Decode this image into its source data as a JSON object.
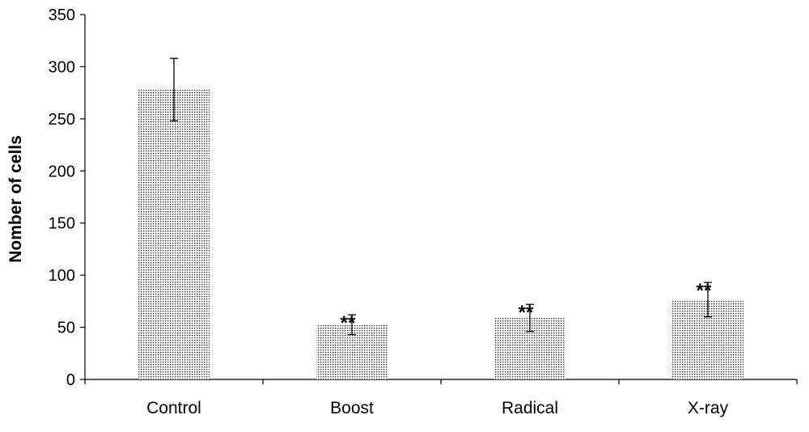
{
  "chart_data": {
    "type": "bar",
    "title": "",
    "xlabel": "",
    "ylabel": "Nomber of cells",
    "ylim": [
      0,
      350
    ],
    "yticks": [
      0,
      50,
      100,
      150,
      200,
      250,
      300,
      350
    ],
    "grid": false,
    "categories": [
      "Control",
      "Boost",
      "Radical",
      "X-ray"
    ],
    "values": [
      278,
      53,
      59,
      76
    ],
    "error_low": [
      248,
      43,
      46,
      60
    ],
    "error_high": [
      308,
      62,
      72,
      93
    ],
    "annotations": [
      "",
      "**",
      "**",
      "**"
    ],
    "bar_pattern": "dotted",
    "colors": {
      "bar_fill": "#ffffff",
      "bar_dots": "#333333",
      "axis": "#000000"
    }
  }
}
